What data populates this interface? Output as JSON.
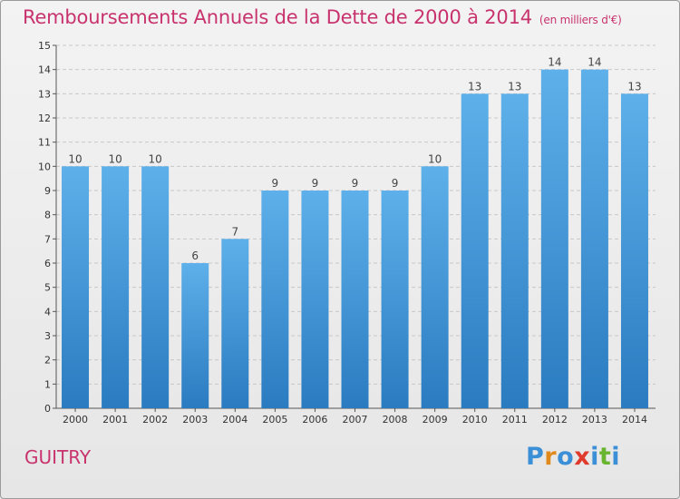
{
  "header": {
    "title": "Remboursements Annuels de la Dette de 2000 à 2014",
    "unit": "(en milliers d'€)"
  },
  "footer": {
    "commune": "GUITRY",
    "logo": "Proxiti"
  },
  "colors": {
    "title": "#c8336e",
    "bar_top": "#5eb0ea",
    "bar_bottom": "#2a7bc0",
    "grid": "#c8c8c8"
  },
  "chart_data": {
    "type": "bar",
    "title": "Remboursements Annuels de la Dette de 2000 à 2014",
    "subtitle": "(en milliers d'€)",
    "xlabel": "",
    "ylabel": "",
    "categories": [
      "2000",
      "2001",
      "2002",
      "2003",
      "2004",
      "2005",
      "2006",
      "2007",
      "2008",
      "2009",
      "2010",
      "2011",
      "2012",
      "2013",
      "2014"
    ],
    "values": [
      10,
      10,
      10,
      6,
      7,
      9,
      9,
      9,
      9,
      10,
      13,
      13,
      14,
      14,
      13
    ],
    "ylim": [
      0,
      15
    ],
    "yticks": [
      0,
      1,
      2,
      3,
      4,
      5,
      6,
      7,
      8,
      9,
      10,
      11,
      12,
      13,
      14,
      15
    ],
    "grid": true,
    "legend": "none"
  }
}
